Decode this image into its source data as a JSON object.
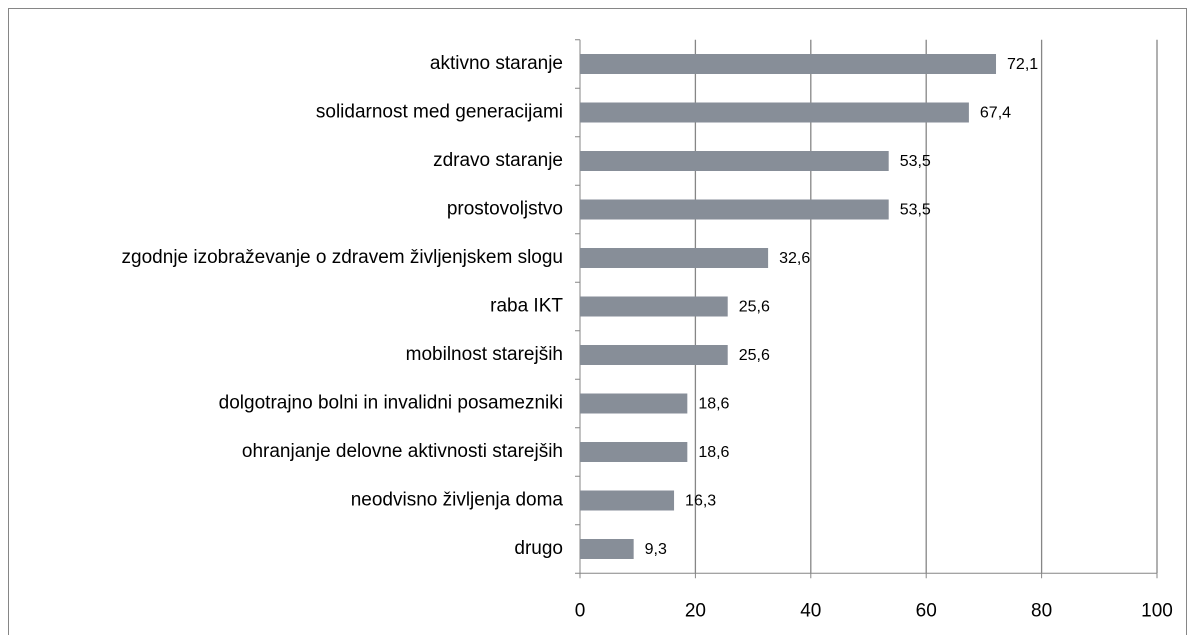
{
  "chart_data": {
    "type": "bar",
    "orientation": "horizontal",
    "categories": [
      "aktivno staranje",
      "solidarnost med generacijami",
      "zdravo staranje",
      "prostovoljstvo",
      "zgodnje izobraževanje o zdravem življenjskem slogu",
      "raba IKT",
      "mobilnost starejših",
      "dolgotrajno bolni in invalidni posamezniki",
      "ohranjanje delovne aktivnosti starejših",
      "neodvisno življenja doma",
      "drugo"
    ],
    "values": [
      72.1,
      67.4,
      53.5,
      53.5,
      32.6,
      25.6,
      25.6,
      18.6,
      18.6,
      16.3,
      9.3
    ],
    "value_labels": [
      "72,1",
      "67,4",
      "53,5",
      "53,5",
      "32,6",
      "25,6",
      "25,6",
      "18,6",
      "18,6",
      "16,3",
      "9,3"
    ],
    "color": "#878e98",
    "xlim": [
      0,
      100
    ],
    "xticks": [
      0,
      20,
      40,
      60,
      80,
      100
    ],
    "grid": true
  }
}
